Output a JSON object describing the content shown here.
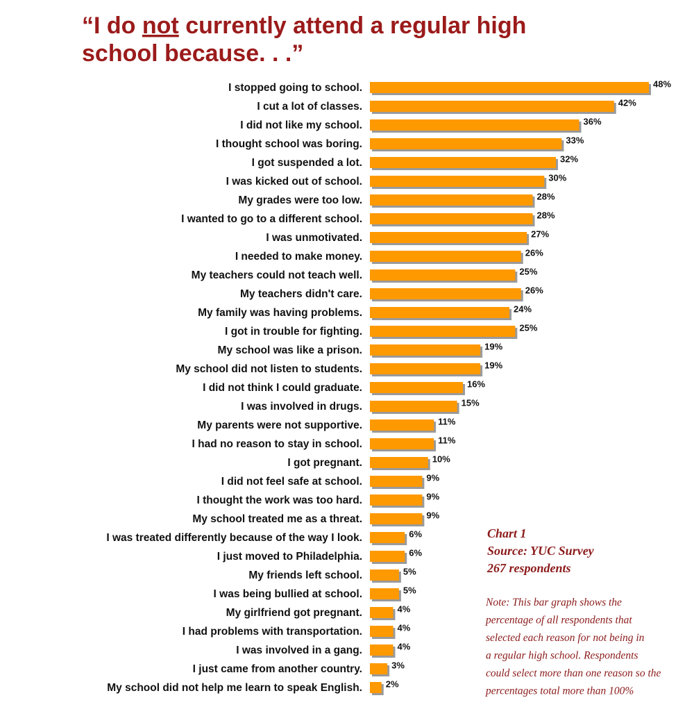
{
  "chart_data": {
    "type": "bar",
    "orientation": "horizontal",
    "title": [
      "“I do ",
      "not",
      " currently attend a regular high",
      "school because. . .”"
    ],
    "color": "#ff9900",
    "categories": [
      "I stopped going to school.",
      "I cut a lot of classes.",
      "I did not like my school.",
      "I thought school was boring.",
      "I got suspended a lot.",
      "I was kicked out of school.",
      "My grades were too low.",
      "I wanted to go to a different school.",
      "I was unmotivated.",
      "I needed to make money.",
      "My teachers could not teach well.",
      "My teachers didn't care.",
      "My family was having problems.",
      "I got in trouble for fighting.",
      "My school was like a prison.",
      "My school did not listen to students.",
      "I did not think I could graduate.",
      "I was involved in drugs.",
      "My parents were not supportive.",
      "I had no reason to stay in school.",
      "I got pregnant.",
      "I did not feel safe at school.",
      "I thought the work was too hard.",
      "My school treated me as a threat.",
      "I was treated differently because of the way I look.",
      "I just moved to Philadelphia.",
      "My friends left school.",
      "I was being bullied at school.",
      "My girlfriend got pregnant.",
      "I had problems with transportation.",
      "I was involved in a gang.",
      "I just came from another country.",
      "My school did not help me learn to speak English."
    ],
    "values": [
      48,
      42,
      36,
      33,
      32,
      30,
      28,
      28,
      27,
      26,
      25,
      26,
      24,
      25,
      19,
      19,
      16,
      15,
      11,
      11,
      10,
      9,
      9,
      9,
      6,
      6,
      5,
      5,
      4,
      4,
      4,
      3,
      2
    ],
    "value_labels": [
      "48%",
      "42%",
      "36%",
      "33%",
      "32%",
      "30%",
      "28%",
      "28%",
      "27%",
      "26%",
      "25%",
      "26%",
      "24%",
      "25%",
      "19%",
      "19%",
      "16%",
      "15%",
      "11%",
      "11%",
      "10%",
      "9%",
      "9%",
      "9%",
      "6%",
      "6%",
      "5%",
      "5%",
      "4%",
      "4%",
      "4%",
      "3%",
      "2%"
    ],
    "annotations": [
      "Chart 1",
      "Source: YUC Survey",
      "267 respondents"
    ],
    "note": [
      "Note: This bar graph shows the",
      "percentage of  all respondents that",
      "selected each reason for not being in",
      "a regular high school. Respondents",
      "could select more than one reason so the",
      "percentages total more than 100%"
    ]
  }
}
